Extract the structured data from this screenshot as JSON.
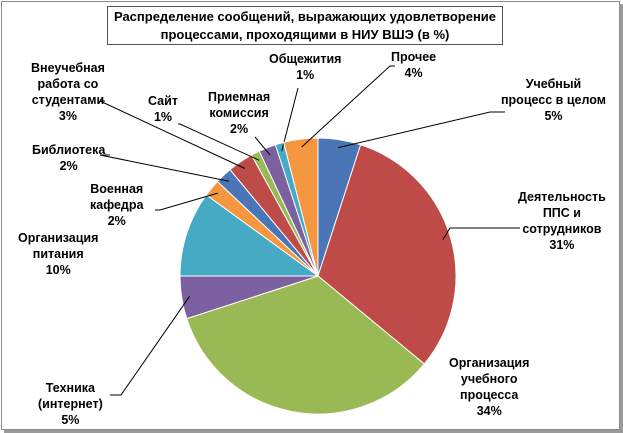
{
  "chart_data": {
    "type": "pie",
    "title_lines": [
      "Распределение сообщений, выражающих удовлетворение",
      "процессами, проходящими в НИУ ВШЭ (в %)"
    ],
    "slices": [
      {
        "name_lines": [
          "Учебный",
          "процесс в целом"
        ],
        "value": 5,
        "value_label": "5%",
        "color": "#4a76b8"
      },
      {
        "name_lines": [
          "Деятельность",
          "ППС и",
          "сотрудников"
        ],
        "value": 31,
        "value_label": "31%",
        "color": "#be4b48"
      },
      {
        "name_lines": [
          "Организация",
          "учебного",
          "процесса"
        ],
        "value": 34,
        "value_label": "34%",
        "color": "#98b954"
      },
      {
        "name_lines": [
          "Техника",
          "(интернет)"
        ],
        "value": 5,
        "value_label": "5%",
        "color": "#7d60a0"
      },
      {
        "name_lines": [
          "Организация",
          "питания"
        ],
        "value": 10,
        "value_label": "10%",
        "color": "#46aac5"
      },
      {
        "name_lines": [
          "Военная",
          "кафедра"
        ],
        "value": 2,
        "value_label": "2%",
        "color": "#f59640"
      },
      {
        "name_lines": [
          "Библиотека"
        ],
        "value": 2,
        "value_label": "2%",
        "color": "#4a76b8"
      },
      {
        "name_lines": [
          "Внеучебная",
          "работа со",
          "студентами"
        ],
        "value": 3,
        "value_label": "3%",
        "color": "#be4b48"
      },
      {
        "name_lines": [
          "Сайт"
        ],
        "value": 1,
        "value_label": "1%",
        "color": "#98b954"
      },
      {
        "name_lines": [
          "Приемная",
          "комиссия"
        ],
        "value": 2,
        "value_label": "2%",
        "color": "#7d60a0"
      },
      {
        "name_lines": [
          "Общежития"
        ],
        "value": 1,
        "value_label": "1%",
        "color": "#46aac5"
      },
      {
        "name_lines": [
          "Прочее"
        ],
        "value": 4,
        "value_label": "4%",
        "color": "#f59640"
      }
    ],
    "start_angle_deg": 0,
    "direction": "clockwise",
    "legend": "none",
    "labels": "outside-with-leader-lines"
  }
}
